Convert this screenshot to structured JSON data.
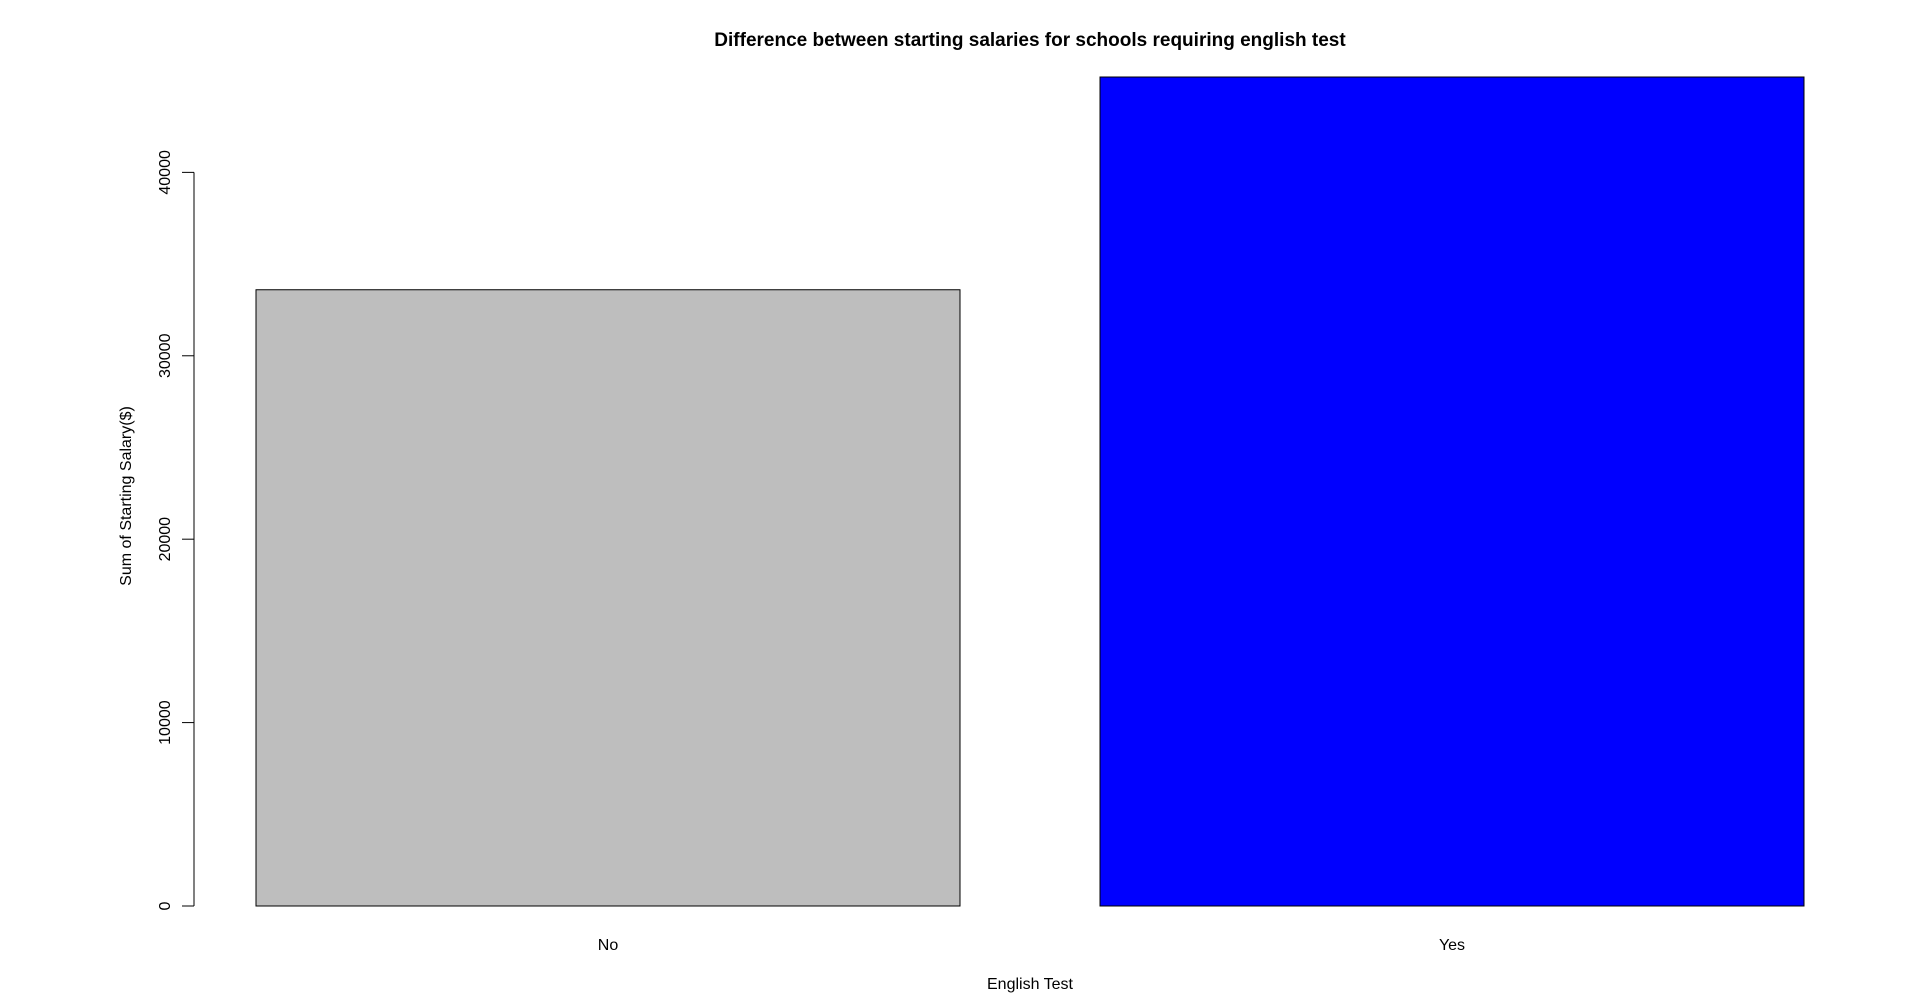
{
  "chart_data": {
    "type": "bar",
    "title": "Difference between starting salaries for schools requiring english test",
    "xlabel": "English Test",
    "ylabel": "Sum of Starting Salary($)",
    "categories": [
      "No",
      "Yes"
    ],
    "values": [
      33600,
      45200
    ],
    "colors": [
      "#bebebe",
      "#0000ff"
    ],
    "ylim": [
      0,
      45200
    ],
    "yticks": [
      0,
      10000,
      20000,
      30000,
      40000
    ],
    "ytick_labels": [
      "0",
      "10000",
      "20000",
      "30000",
      "40000"
    ],
    "grid": false,
    "legend": "none"
  }
}
